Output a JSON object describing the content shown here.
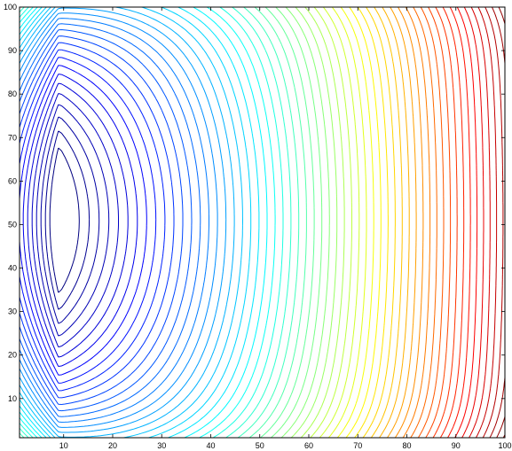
{
  "chart_data": {
    "type": "contour",
    "title": "",
    "xlabel": "",
    "ylabel": "",
    "xlim": [
      1,
      100
    ],
    "ylim": [
      1,
      100
    ],
    "x_ticks": [
      10,
      20,
      30,
      40,
      50,
      60,
      70,
      80,
      90,
      100
    ],
    "y_ticks": [
      10,
      20,
      30,
      40,
      50,
      60,
      70,
      80,
      90,
      100
    ],
    "x_tick_labels": [
      "10",
      "20",
      "30",
      "40",
      "50",
      "60",
      "70",
      "80",
      "90",
      "100"
    ],
    "y_tick_labels": [
      "10",
      "20",
      "30",
      "40",
      "50",
      "60",
      "70",
      "80",
      "90",
      "100"
    ],
    "colormap": "jet",
    "level_count": 58,
    "innermost_contour": {
      "x_range": [
        2,
        17
      ],
      "y_range": [
        34,
        67
      ]
    },
    "minimum_location": {
      "x": 9,
      "y": 51
    },
    "grid": false,
    "legend": "none"
  }
}
